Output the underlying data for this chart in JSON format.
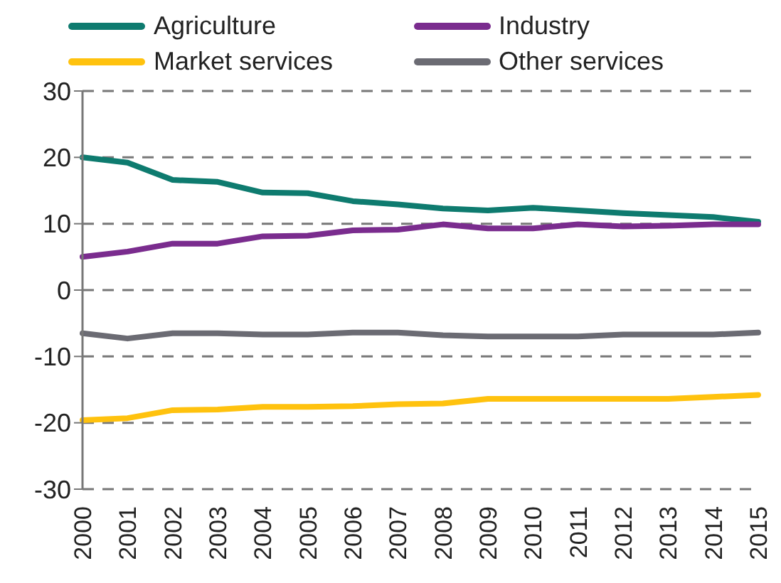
{
  "chart_data": {
    "type": "line",
    "categories": [
      "2000",
      "2001",
      "2002",
      "2003",
      "2004",
      "2005",
      "2006",
      "2007",
      "2008",
      "2009",
      "2010",
      "2011",
      "2012",
      "2013",
      "2014",
      "2015"
    ],
    "series": [
      {
        "name": "Agriculture",
        "color": "#0e7b6f",
        "values": [
          20,
          19.2,
          16.6,
          16.3,
          14.7,
          14.6,
          13.4,
          12.9,
          12.3,
          12.0,
          12.4,
          12.0,
          11.6,
          11.3,
          11.0,
          10.3
        ]
      },
      {
        "name": "Industry",
        "color": "#7a2c8e",
        "values": [
          5,
          5.8,
          7,
          7,
          8.1,
          8.2,
          9,
          9.1,
          9.9,
          9.3,
          9.3,
          9.9,
          9.6,
          9.7,
          9.9,
          9.9
        ]
      },
      {
        "name": "Market services",
        "color": "#ffc20e",
        "values": [
          -19.6,
          -19.3,
          -18.1,
          -18.0,
          -17.6,
          -17.6,
          -17.5,
          -17.2,
          -17.1,
          -16.4,
          -16.4,
          -16.4,
          -16.4,
          -16.4,
          -16.1,
          -15.8
        ]
      },
      {
        "name": "Other services",
        "color": "#6b6b73",
        "values": [
          -6.5,
          -7.3,
          -6.5,
          -6.5,
          -6.7,
          -6.7,
          -6.4,
          -6.4,
          -6.8,
          -7.0,
          -7.0,
          -7.0,
          -6.7,
          -6.7,
          -6.7,
          -6.4
        ]
      }
    ],
    "ylim": [
      -30,
      30
    ],
    "yticks": [
      -30,
      -20,
      -10,
      0,
      10,
      20,
      30
    ],
    "grid": "y",
    "legend": "top",
    "marker": "none",
    "line_style": "solid"
  }
}
